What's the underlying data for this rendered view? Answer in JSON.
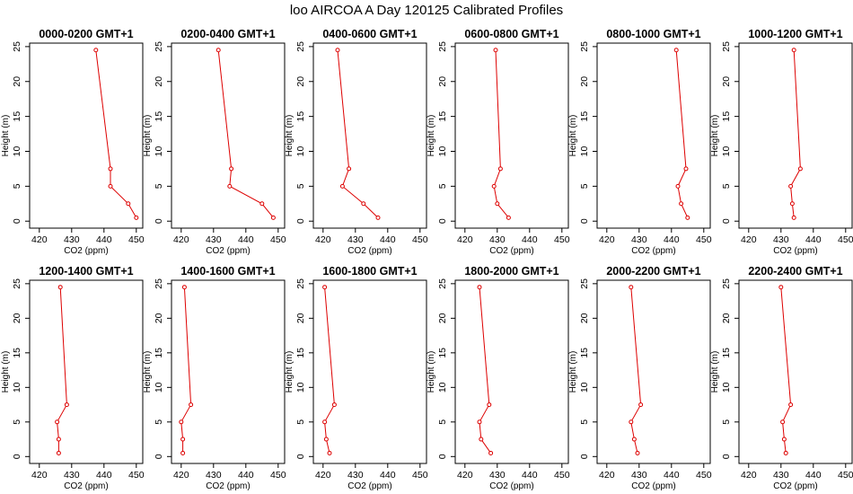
{
  "title": "loo AIRCOA A  Day 120125  Calibrated Profiles",
  "chart_data": {
    "type": "line",
    "title": "loo AIRCOA A  Day 120125  Calibrated Profiles",
    "xlabel": "CO2 (ppm)",
    "ylabel": "Height (m)",
    "xlim": [
      417,
      452
    ],
    "ylim": [
      -1,
      25.5
    ],
    "xticks": [
      420,
      430,
      440,
      450
    ],
    "yticks": [
      0,
      5,
      10,
      15,
      20,
      25
    ],
    "grid": false,
    "colors": {
      "series": "#dd0000",
      "axes": "#000000",
      "background": "#ffffff"
    },
    "panels": [
      {
        "title": "0000-0200 GMT+1",
        "points": [
          {
            "x": 450,
            "y": 0.5
          },
          {
            "x": 447.5,
            "y": 2.5
          },
          {
            "x": 442,
            "y": 5
          },
          {
            "x": 442,
            "y": 7.5
          },
          {
            "x": 437.5,
            "y": 24.5
          }
        ]
      },
      {
        "title": "0200-0400 GMT+1",
        "points": [
          {
            "x": 448.5,
            "y": 0.5
          },
          {
            "x": 445,
            "y": 2.5
          },
          {
            "x": 435,
            "y": 5
          },
          {
            "x": 435.5,
            "y": 7.5
          },
          {
            "x": 431.5,
            "y": 24.5
          }
        ]
      },
      {
        "title": "0400-0600 GMT+1",
        "points": [
          {
            "x": 437,
            "y": 0.5
          },
          {
            "x": 432.5,
            "y": 2.5
          },
          {
            "x": 426,
            "y": 5
          },
          {
            "x": 428,
            "y": 7.5
          },
          {
            "x": 424.5,
            "y": 24.5
          }
        ]
      },
      {
        "title": "0600-0800 GMT+1",
        "points": [
          {
            "x": 433.5,
            "y": 0.5
          },
          {
            "x": 430,
            "y": 2.5
          },
          {
            "x": 429,
            "y": 5
          },
          {
            "x": 431,
            "y": 7.5
          },
          {
            "x": 429.5,
            "y": 24.5
          }
        ]
      },
      {
        "title": "0800-1000 GMT+1",
        "points": [
          {
            "x": 445,
            "y": 0.5
          },
          {
            "x": 443,
            "y": 2.5
          },
          {
            "x": 442,
            "y": 5
          },
          {
            "x": 444.5,
            "y": 7.5
          },
          {
            "x": 441.5,
            "y": 24.5
          }
        ]
      },
      {
        "title": "1000-1200 GMT+1",
        "points": [
          {
            "x": 434,
            "y": 0.5
          },
          {
            "x": 433.5,
            "y": 2.5
          },
          {
            "x": 433,
            "y": 5
          },
          {
            "x": 436,
            "y": 7.5
          },
          {
            "x": 434,
            "y": 24.5
          }
        ]
      },
      {
        "title": "1200-1400 GMT+1",
        "points": [
          {
            "x": 426,
            "y": 0.5
          },
          {
            "x": 426,
            "y": 2.5
          },
          {
            "x": 425.5,
            "y": 5
          },
          {
            "x": 428.5,
            "y": 7.5
          },
          {
            "x": 426.5,
            "y": 24.5
          }
        ]
      },
      {
        "title": "1400-1600 GMT+1",
        "points": [
          {
            "x": 420.5,
            "y": 0.5
          },
          {
            "x": 420.5,
            "y": 2.5
          },
          {
            "x": 420,
            "y": 5
          },
          {
            "x": 423,
            "y": 7.5
          },
          {
            "x": 421,
            "y": 24.5
          }
        ]
      },
      {
        "title": "1600-1800 GMT+1",
        "points": [
          {
            "x": 422,
            "y": 0.5
          },
          {
            "x": 421,
            "y": 2.5
          },
          {
            "x": 420.5,
            "y": 5
          },
          {
            "x": 423.5,
            "y": 7.5
          },
          {
            "x": 420.5,
            "y": 24.5
          }
        ]
      },
      {
        "title": "1800-2000 GMT+1",
        "points": [
          {
            "x": 428,
            "y": 0.5
          },
          {
            "x": 425,
            "y": 2.5
          },
          {
            "x": 424.5,
            "y": 5
          },
          {
            "x": 427.5,
            "y": 7.5
          },
          {
            "x": 424.5,
            "y": 24.5
          }
        ]
      },
      {
        "title": "2000-2200 GMT+1",
        "points": [
          {
            "x": 429.5,
            "y": 0.5
          },
          {
            "x": 428.5,
            "y": 2.5
          },
          {
            "x": 427.5,
            "y": 5
          },
          {
            "x": 430.5,
            "y": 7.5
          },
          {
            "x": 427.5,
            "y": 24.5
          }
        ]
      },
      {
        "title": "2200-2400 GMT+1",
        "points": [
          {
            "x": 431.5,
            "y": 0.5
          },
          {
            "x": 431,
            "y": 2.5
          },
          {
            "x": 430.5,
            "y": 5
          },
          {
            "x": 433,
            "y": 7.5
          },
          {
            "x": 430,
            "y": 24.5
          }
        ]
      }
    ]
  }
}
